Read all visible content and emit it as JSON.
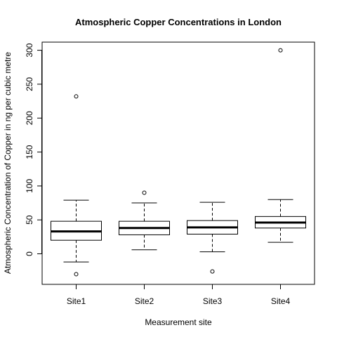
{
  "chart_data": {
    "type": "boxplot",
    "title": "Atmospheric Copper Concentrations in London",
    "xlabel": "Measurement site",
    "ylabel": "Atmospheric Concentration of Copper in ng per cubic metre",
    "ylim": [
      -45,
      312
    ],
    "yticks": [
      0,
      50,
      100,
      150,
      200,
      250,
      300
    ],
    "grid": false,
    "legend": "none",
    "categories": [
      "Site1",
      "Site2",
      "Site3",
      "Site4"
    ],
    "boxes": [
      {
        "name": "Site1",
        "whisker_low": -12,
        "q1": 20,
        "median": 33,
        "q3": 48,
        "whisker_high": 79,
        "outliers": [
          232,
          -30
        ]
      },
      {
        "name": "Site2",
        "whisker_low": 6,
        "q1": 28,
        "median": 38,
        "q3": 48,
        "whisker_high": 75,
        "outliers": [
          90
        ]
      },
      {
        "name": "Site3",
        "whisker_low": 3,
        "q1": 29,
        "median": 39,
        "q3": 49,
        "whisker_high": 76,
        "outliers": [
          -26
        ]
      },
      {
        "name": "Site4",
        "whisker_low": 17,
        "q1": 38,
        "median": 46,
        "q3": 55,
        "whisker_high": 80,
        "outliers": [
          300
        ]
      }
    ]
  }
}
